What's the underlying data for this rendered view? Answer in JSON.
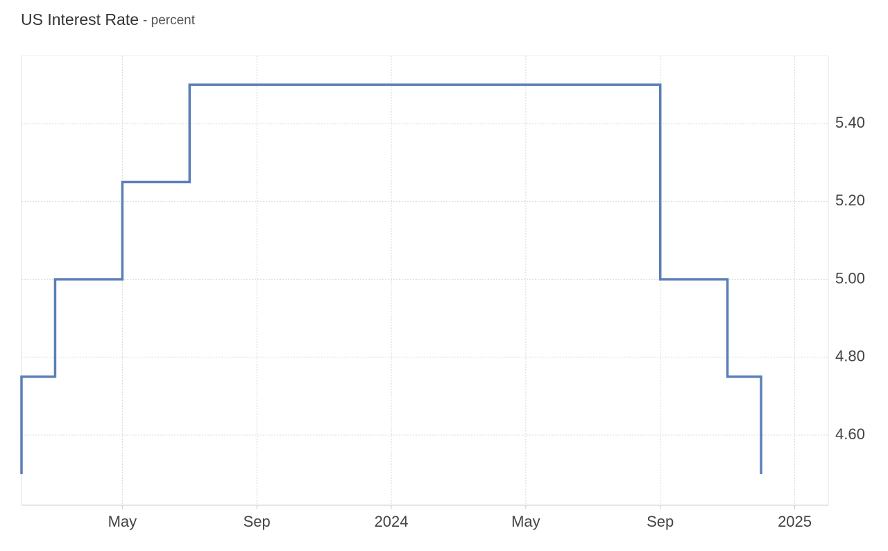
{
  "chart_data": {
    "type": "line",
    "title": "US Interest Rate",
    "subtitle": "- percent",
    "step": "after",
    "grid": true,
    "x": [
      "2023-02",
      "2023-02",
      "2023-03",
      "2023-05",
      "2023-07",
      "2024-09",
      "2024-11",
      "2024-12"
    ],
    "series": [
      {
        "name": "US Interest Rate",
        "color": "#5b7fb7",
        "values": [
          4.5,
          4.75,
          5.0,
          5.25,
          5.5,
          5.0,
          4.75,
          4.5
        ]
      }
    ],
    "xlim": [
      "2023-02",
      "2025-02"
    ],
    "xticks": [
      {
        "value": "2023-05",
        "label": "May"
      },
      {
        "value": "2023-09",
        "label": "Sep"
      },
      {
        "value": "2024-01",
        "label": "2024"
      },
      {
        "value": "2024-05",
        "label": "May"
      },
      {
        "value": "2024-09",
        "label": "Sep"
      },
      {
        "value": "2025-01",
        "label": "2025"
      }
    ],
    "ylim": [
      4.42,
      5.575
    ],
    "yticks": [
      {
        "value": 4.6,
        "label": "4.60"
      },
      {
        "value": 4.8,
        "label": "4.80"
      },
      {
        "value": 5.0,
        "label": "5.00"
      },
      {
        "value": 5.2,
        "label": "5.20"
      },
      {
        "value": 5.4,
        "label": "5.40"
      }
    ]
  }
}
